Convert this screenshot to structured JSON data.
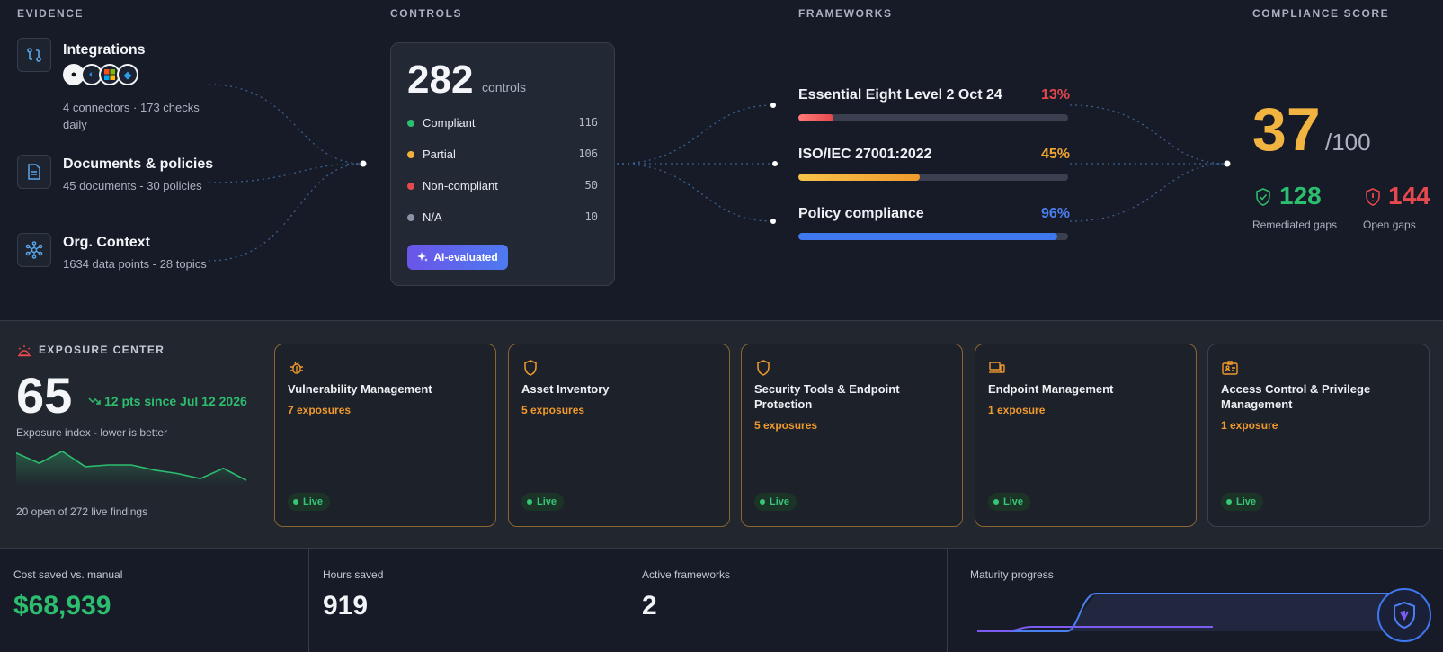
{
  "sections": {
    "evidence": "EVIDENCE",
    "controls": "CONTROLS",
    "frameworks": "FRAMEWORKS",
    "score": "COMPLIANCE SCORE"
  },
  "evidence": [
    {
      "title": "Integrations",
      "subtitle": "4 connectors · 173 checks daily",
      "icon": "integrations-icon"
    },
    {
      "title": "Documents & policies",
      "subtitle": "45 documents - 30 policies",
      "icon": "document-icon"
    },
    {
      "title": "Org. Context",
      "subtitle": "1634 data points - 28 topics",
      "icon": "network-icon"
    }
  ],
  "controls": {
    "total": "282",
    "unit": "controls",
    "rows": [
      {
        "label": "Compliant",
        "value": "116",
        "color": "#2dbd6e"
      },
      {
        "label": "Partial",
        "value": "106",
        "color": "#f0b13c"
      },
      {
        "label": "Non-compliant",
        "value": "50",
        "color": "#e5484d"
      },
      {
        "label": "N/A",
        "value": "10",
        "color": "#8a93a6"
      }
    ],
    "ai_label": "AI-evaluated"
  },
  "frameworks": [
    {
      "name": "Essential Eight Level 2 Oct 24",
      "pct": "13%",
      "progress": 0.13,
      "color": "#e5484d"
    },
    {
      "name": "ISO/IEC 27001:2022",
      "pct": "45%",
      "progress": 0.45,
      "color": "#f0a531"
    },
    {
      "name": "Policy compliance",
      "pct": "96%",
      "progress": 0.96,
      "color": "#4a7ff0"
    }
  ],
  "score": {
    "value": "37",
    "denominator": "/100",
    "remediated": "128",
    "remediated_label": "Remediated gaps",
    "open": "144",
    "open_label": "Open gaps"
  },
  "exposure": {
    "title": "EXPOSURE CENTER",
    "index": "65",
    "delta": "12 pts since Jul 12 2026",
    "subtitle": "Exposure index - lower is better",
    "footer": "20 open of 272 live findings",
    "trend": [
      0.85,
      0.55,
      0.9,
      0.45,
      0.5,
      0.5,
      0.35,
      0.25,
      0.1,
      0.4,
      0.05
    ],
    "cards": [
      {
        "title": "Vulnerability Management",
        "count": "7 exposures",
        "icon": "bug-icon",
        "live": "Live"
      },
      {
        "title": "Asset Inventory",
        "count": "5 exposures",
        "icon": "shield-icon",
        "live": "Live"
      },
      {
        "title": "Security Tools & Endpoint Protection",
        "count": "5 exposures",
        "icon": "shield-icon",
        "live": "Live"
      },
      {
        "title": "Endpoint Management",
        "count": "1 exposure",
        "icon": "devices-icon",
        "live": "Live"
      },
      {
        "title": "Access Control & Privilege Management",
        "count": "1 exposure",
        "icon": "id-badge-icon",
        "live": "Live"
      }
    ]
  },
  "stats": [
    {
      "label": "Cost saved vs. manual",
      "value": "$68,939",
      "color": "#2dbd6e"
    },
    {
      "label": "Hours saved",
      "value": "919",
      "color": "#f1f3f6"
    },
    {
      "label": "Active frameworks",
      "value": "2",
      "color": "#f1f3f6"
    },
    {
      "label": "Maturity progress"
    }
  ]
}
